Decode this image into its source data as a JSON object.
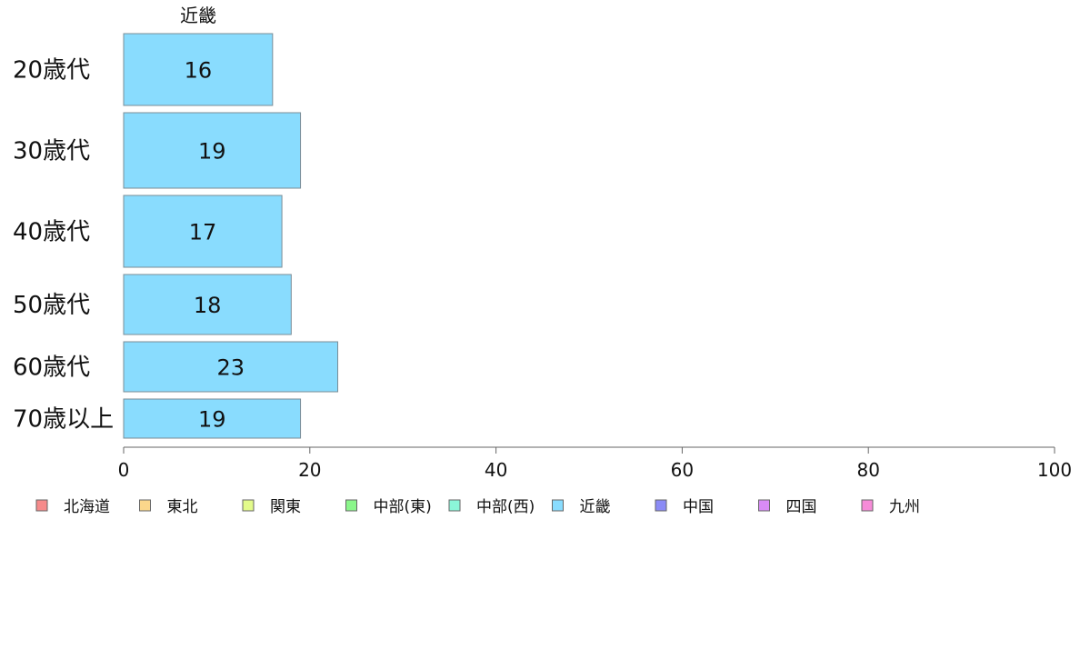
{
  "chart_data": {
    "type": "bar",
    "orientation": "horizontal",
    "series_title": "近畿",
    "categories": [
      "20歳代",
      "30歳代",
      "40歳代",
      "50歳代",
      "60歳代",
      "70歳以上"
    ],
    "values": [
      16,
      19,
      17,
      18,
      23,
      19
    ],
    "value_labels": [
      "16",
      "19",
      "17",
      "18",
      "23",
      "19"
    ],
    "xlim": [
      0,
      100
    ],
    "x_ticks": [
      0,
      20,
      40,
      60,
      80,
      100
    ],
    "x_tick_labels": [
      "0",
      "20",
      "40",
      "60",
      "80",
      "100"
    ],
    "bar_color": "#89dcfe",
    "grid": false,
    "legend_position": "bottom",
    "legend": [
      {
        "name": "北海道",
        "color": "#f68b8b"
      },
      {
        "name": "東北",
        "color": "#fbd78b"
      },
      {
        "name": "関東",
        "color": "#e3fb8b"
      },
      {
        "name": "中部(東)",
        "color": "#8bf68b"
      },
      {
        "name": "中部(西)",
        "color": "#8bf6d8"
      },
      {
        "name": "近畿",
        "color": "#89dcfe"
      },
      {
        "name": "中国",
        "color": "#8b8bf6"
      },
      {
        "name": "四国",
        "color": "#d88bf6"
      },
      {
        "name": "九州",
        "color": "#f68bd8"
      }
    ]
  }
}
